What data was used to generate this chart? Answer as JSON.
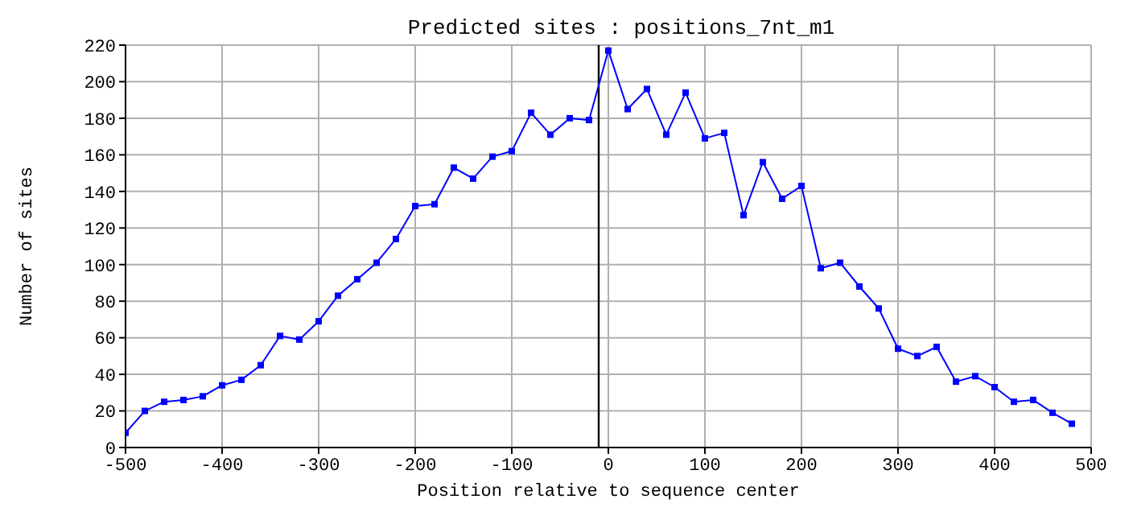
{
  "chart_data": {
    "type": "line",
    "title": "Predicted sites : positions_7nt_m1",
    "xlabel": "Position relative to sequence center",
    "ylabel": "Number of sites",
    "x": [
      -500,
      -480,
      -460,
      -440,
      -420,
      -400,
      -380,
      -360,
      -340,
      -320,
      -300,
      -280,
      -260,
      -240,
      -220,
      -200,
      -180,
      -160,
      -140,
      -120,
      -100,
      -80,
      -60,
      -40,
      -20,
      0,
      20,
      40,
      60,
      80,
      100,
      120,
      140,
      160,
      180,
      200,
      220,
      240,
      260,
      280,
      300,
      320,
      340,
      360,
      380,
      400,
      420,
      440,
      460,
      480
    ],
    "series": [
      {
        "color": "#0000ff",
        "values": [
          8,
          20,
          25,
          26,
          28,
          34,
          37,
          45,
          61,
          59,
          69,
          83,
          92,
          101,
          114,
          132,
          133,
          153,
          147,
          159,
          162,
          183,
          171,
          180,
          179,
          217,
          185,
          196,
          171,
          194,
          169,
          172,
          127,
          156,
          136,
          143,
          98,
          101,
          88,
          76,
          54,
          50,
          55,
          36,
          39,
          33,
          25,
          26,
          19,
          13
        ]
      }
    ],
    "xlim": [
      -500,
      500
    ],
    "xticks": [
      -500,
      -400,
      -300,
      -200,
      -100,
      0,
      100,
      200,
      300,
      400,
      500
    ],
    "ylim": [
      0,
      220
    ],
    "yticks": [
      0,
      20,
      40,
      60,
      80,
      100,
      120,
      140,
      160,
      180,
      200,
      220
    ],
    "ref_lines": [
      {
        "axis": "x",
        "value": -10,
        "color": "#000000"
      }
    ],
    "grid": true,
    "marker": "square",
    "line_style": "solid"
  }
}
